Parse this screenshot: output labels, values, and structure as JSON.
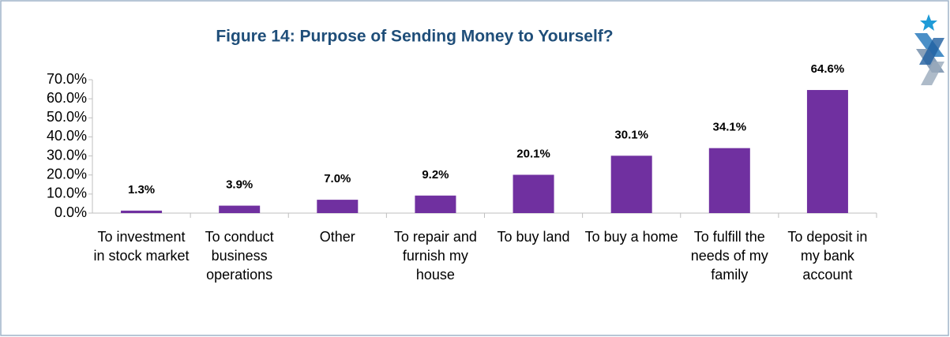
{
  "chart_data": {
    "type": "bar",
    "title": "Figure 14: Purpose of Sending Money to Yourself?",
    "categories": [
      "To investment in stock market",
      "To conduct business operations",
      "Other",
      "To repair and furnish my house",
      "To buy land",
      "To buy a home",
      "To fulfill the needs of my family",
      "To deposit in my bank account"
    ],
    "values": [
      1.3,
      3.9,
      7.0,
      9.2,
      20.1,
      30.1,
      34.1,
      64.6
    ],
    "value_labels": [
      "1.3%",
      "3.9%",
      "7.0%",
      "9.2%",
      "20.1%",
      "30.1%",
      "34.1%",
      "64.6%"
    ],
    "color": "#7030a0",
    "ylim": [
      0,
      70
    ],
    "yticks": [
      {
        "value": 0,
        "label": "0.0%"
      },
      {
        "value": 10,
        "label": "10.0%"
      },
      {
        "value": 20,
        "label": "20.0%"
      },
      {
        "value": 30,
        "label": "30.0%"
      },
      {
        "value": 40,
        "label": "40.0%"
      },
      {
        "value": 50,
        "label": "50.0%"
      },
      {
        "value": 60,
        "label": "60.0%"
      },
      {
        "value": 70,
        "label": "70.0%"
      }
    ],
    "grid": false
  }
}
